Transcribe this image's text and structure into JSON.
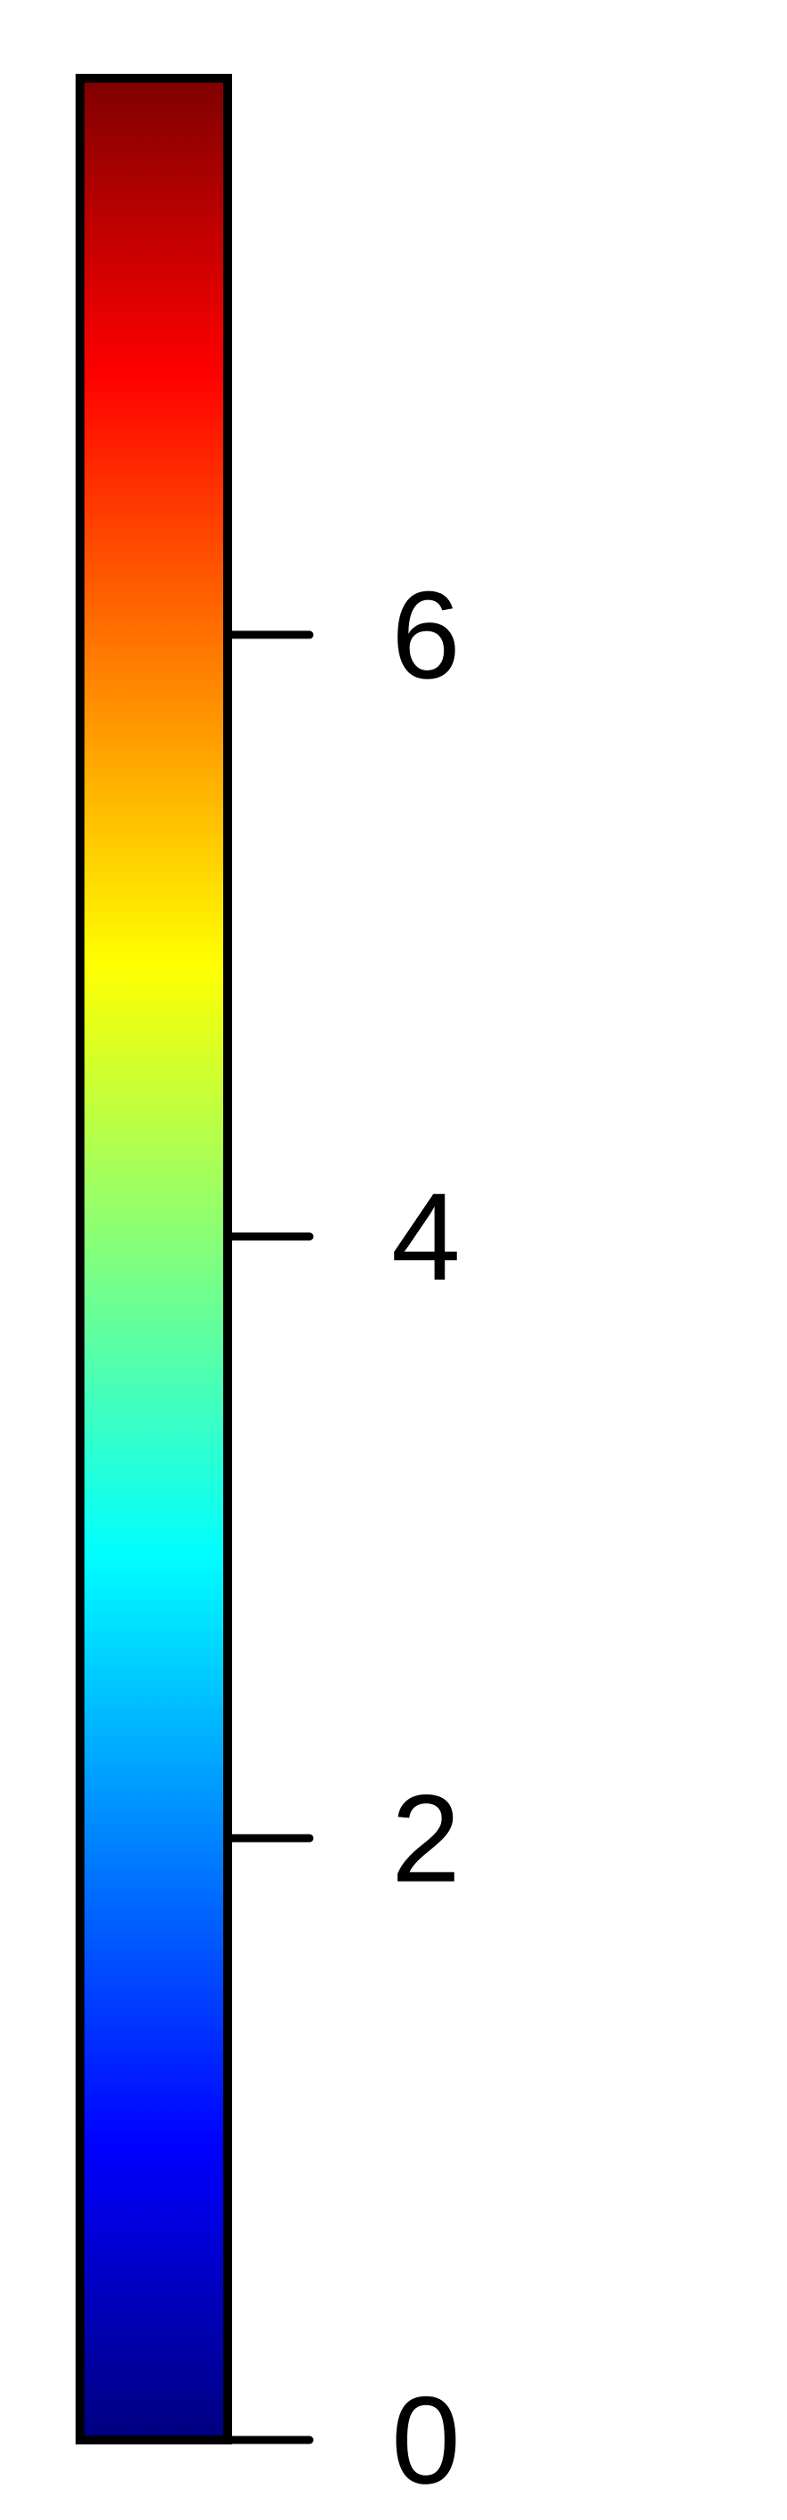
{
  "chart_data": {
    "type": "colorbar",
    "orientation": "vertical",
    "title": "",
    "ylim": [
      0,
      7.85
    ],
    "colormap": "jet",
    "ticks": [
      {
        "value": 0,
        "label": "0"
      },
      {
        "value": 2,
        "label": "2"
      },
      {
        "value": 4,
        "label": "4"
      },
      {
        "value": 6,
        "label": "6"
      }
    ],
    "colors": {
      "outline": "#000000",
      "stops": [
        {
          "offset": 0.0,
          "color": "#7f0000"
        },
        {
          "offset": 0.125,
          "color": "#ff0000"
        },
        {
          "offset": 0.375,
          "color": "#ffff00"
        },
        {
          "offset": 0.625,
          "color": "#00ffff"
        },
        {
          "offset": 0.875,
          "color": "#0000ff"
        },
        {
          "offset": 1.0,
          "color": "#00007f"
        }
      ]
    }
  }
}
